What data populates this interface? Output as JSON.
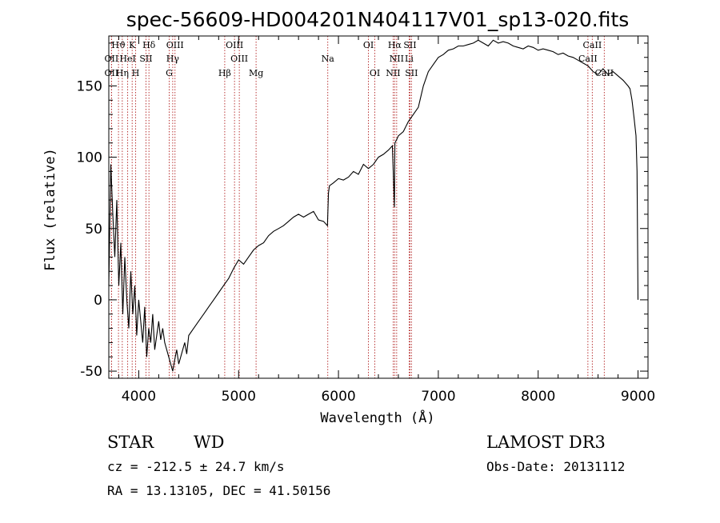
{
  "chart_data": {
    "type": "line",
    "title": "spec-56609-HD004201N404117V01_sp13-020.fits",
    "xlabel": "Wavelength (Å)",
    "ylabel": "Flux (relative)",
    "xlim": [
      3700,
      9100
    ],
    "ylim": [
      -55,
      185
    ],
    "x_ticks": [
      4000,
      5000,
      6000,
      7000,
      8000,
      9000
    ],
    "y_ticks": [
      -50,
      0,
      50,
      100,
      150
    ],
    "grid": false,
    "series": [
      {
        "color": "#000000",
        "x": [
          3700,
          3720,
          3740,
          3760,
          3780,
          3800,
          3820,
          3840,
          3860,
          3880,
          3900,
          3920,
          3940,
          3960,
          3980,
          4000,
          4020,
          4040,
          4060,
          4080,
          4100,
          4120,
          4140,
          4160,
          4180,
          4200,
          4220,
          4240,
          4260,
          4280,
          4300,
          4320,
          4340,
          4360,
          4380,
          4400,
          4420,
          4440,
          4460,
          4480,
          4500,
          4550,
          4600,
          4650,
          4700,
          4750,
          4800,
          4850,
          4900,
          4950,
          5000,
          5050,
          5100,
          5150,
          5200,
          5250,
          5300,
          5350,
          5400,
          5450,
          5500,
          5550,
          5600,
          5650,
          5700,
          5750,
          5800,
          5850,
          5890,
          5900,
          5910,
          5950,
          6000,
          6050,
          6100,
          6150,
          6200,
          6250,
          6300,
          6350,
          6400,
          6450,
          6500,
          6540,
          6560,
          6565,
          6580,
          6600,
          6650,
          6700,
          6750,
          6800,
          6850,
          6900,
          6950,
          7000,
          7050,
          7100,
          7150,
          7200,
          7250,
          7300,
          7350,
          7400,
          7450,
          7500,
          7550,
          7600,
          7650,
          7700,
          7750,
          7800,
          7850,
          7900,
          7950,
          8000,
          8050,
          8100,
          8150,
          8200,
          8250,
          8300,
          8350,
          8400,
          8450,
          8500,
          8550,
          8600,
          8650,
          8700,
          8750,
          8800,
          8850,
          8900,
          8920,
          8940,
          8960,
          8980,
          8990,
          9000
        ],
        "y": [
          10,
          95,
          60,
          30,
          70,
          10,
          40,
          -10,
          30,
          0,
          -20,
          20,
          -10,
          10,
          -25,
          0,
          -15,
          -30,
          -5,
          -40,
          -20,
          -30,
          -10,
          -35,
          -25,
          -15,
          -28,
          -20,
          -30,
          -35,
          -40,
          -45,
          -50,
          -42,
          -35,
          -45,
          -40,
          -35,
          -30,
          -38,
          -25,
          -20,
          -15,
          -10,
          -5,
          0,
          5,
          10,
          15,
          22,
          28,
          25,
          30,
          35,
          38,
          40,
          45,
          48,
          50,
          52,
          55,
          58,
          60,
          58,
          60,
          62,
          56,
          55,
          52,
          75,
          80,
          82,
          85,
          84,
          86,
          90,
          88,
          95,
          92,
          95,
          100,
          102,
          105,
          108,
          65,
          110,
          112,
          115,
          118,
          125,
          130,
          135,
          150,
          160,
          165,
          170,
          172,
          175,
          176,
          178,
          178,
          179,
          180,
          182,
          180,
          178,
          182,
          180,
          181,
          180,
          178,
          177,
          176,
          178,
          177,
          175,
          176,
          175,
          174,
          172,
          173,
          171,
          170,
          168,
          166,
          164,
          160,
          158,
          162,
          158,
          160,
          157,
          154,
          150,
          148,
          140,
          128,
          115,
          90,
          0
        ]
      }
    ],
    "spectral_lines": [
      {
        "label": "Hϑ",
        "x": 3797,
        "row": 1
      },
      {
        "label": "OII",
        "x": 3727,
        "row": 2
      },
      {
        "label": "OII",
        "x": 3727,
        "row": 3
      },
      {
        "label": "K",
        "x": 3934,
        "row": 1
      },
      {
        "label": "HeI",
        "x": 3889,
        "row": 2
      },
      {
        "label": "Hη",
        "x": 3835,
        "row": 3
      },
      {
        "label": "Hδ",
        "x": 4102,
        "row": 1
      },
      {
        "label": "SII",
        "x": 4072,
        "row": 2
      },
      {
        "label": "H",
        "x": 3969,
        "row": 3
      },
      {
        "label": "OIII",
        "x": 4363,
        "row": 1
      },
      {
        "label": "Hγ",
        "x": 4340,
        "row": 2
      },
      {
        "label": "G",
        "x": 4305,
        "row": 3
      },
      {
        "label": "OIII",
        "x": 4959,
        "row": 1
      },
      {
        "label": "OIII",
        "x": 5007,
        "row": 2
      },
      {
        "label": "Hβ",
        "x": 4861,
        "row": 3
      },
      {
        "label": "Mg",
        "x": 5175,
        "row": 3
      },
      {
        "label": "Na",
        "x": 5893,
        "row": 2
      },
      {
        "label": "OI",
        "x": 6300,
        "row": 1
      },
      {
        "label": "OI",
        "x": 6364,
        "row": 3
      },
      {
        "label": "Hα",
        "x": 6563,
        "row": 1
      },
      {
        "label": "SII",
        "x": 6716,
        "row": 1
      },
      {
        "label": "NII",
        "x": 6583,
        "row": 2
      },
      {
        "label": "Li",
        "x": 6708,
        "row": 2
      },
      {
        "label": "NII",
        "x": 6548,
        "row": 3
      },
      {
        "label": "SII",
        "x": 6731,
        "row": 3
      },
      {
        "label": "CaII",
        "x": 8542,
        "row": 1
      },
      {
        "label": "CaII",
        "x": 8498,
        "row": 2
      },
      {
        "label": "CaII",
        "x": 8662,
        "row": 3
      }
    ]
  },
  "info": {
    "class": "STAR",
    "subclass": "WD",
    "survey": "LAMOST DR3",
    "cz": "cz = -212.5 ± 24.7 km/s",
    "obs_date": "Obs-Date: 20131112",
    "coords": "RA =  13.13105, DEC =  41.50156"
  }
}
